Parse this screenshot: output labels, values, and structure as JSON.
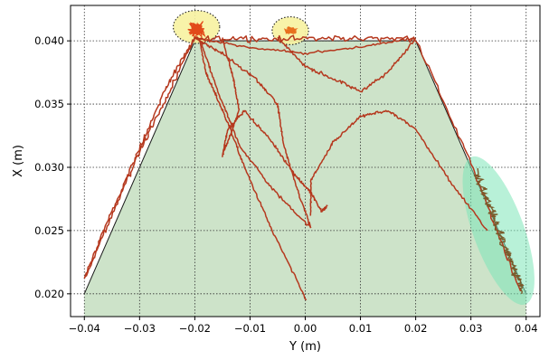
{
  "chart_data": {
    "type": "line",
    "title": "",
    "xlabel": "Y (m)",
    "ylabel": "X (m)",
    "xlim": [
      -0.0425,
      0.0425
    ],
    "ylim": [
      0.0182,
      0.0428
    ],
    "grid": true,
    "grid_style": "dotted",
    "x_ticks": [
      -0.04,
      -0.03,
      -0.02,
      -0.01,
      0.0,
      0.01,
      0.02,
      0.03,
      0.04
    ],
    "x_tick_labels": [
      "−0.04",
      "−0.03",
      "−0.02",
      "−0.01",
      "0.00",
      "0.01",
      "0.02",
      "0.03",
      "0.04"
    ],
    "y_ticks": [
      0.02,
      0.025,
      0.03,
      0.035,
      0.04
    ],
    "y_tick_labels": [
      "0.020",
      "0.025",
      "0.030",
      "0.035",
      "0.040"
    ],
    "colors": {
      "region_fill": "#cde3c9",
      "boundary": "#1a1a1a",
      "trajectory": "#b5381e",
      "hotspot": "#e24a1a",
      "wall_cluster": "#7a5a2a",
      "highlight_yellow": "#f7f2a0",
      "highlight_green": "#7ee6b8"
    },
    "region": {
      "boundary_polygon": [
        {
          "x": -0.04,
          "y": 0.02
        },
        {
          "x": -0.02,
          "y": 0.04
        },
        {
          "x": 0.02,
          "y": 0.04
        },
        {
          "x": 0.04,
          "y": 0.02
        }
      ]
    },
    "highlights": [
      {
        "shape": "ellipse",
        "cx": -0.0197,
        "cy": 0.0411,
        "rx": 0.0042,
        "ry": 0.0013,
        "fill": "#f7f2a0",
        "border": "dotted"
      },
      {
        "shape": "ellipse",
        "cx": -0.0027,
        "cy": 0.0408,
        "rx": 0.0033,
        "ry": 0.0011,
        "fill": "#f7f2a0",
        "border": "dotted"
      },
      {
        "shape": "ellipse",
        "cx": 0.035,
        "cy": 0.025,
        "rx": 0.0046,
        "ry": 0.0062,
        "rotate_deg": -20,
        "fill": "#7ee6b8",
        "border": "none"
      }
    ],
    "series": [
      {
        "points": [
          [
            -0.04,
            0.0211
          ],
          [
            -0.035,
            0.0262
          ],
          [
            -0.03,
            0.0313
          ],
          [
            -0.025,
            0.0356
          ],
          [
            -0.02,
            0.0402
          ],
          [
            -0.01,
            0.0402
          ],
          [
            0.0,
            0.0402
          ],
          [
            0.01,
            0.0402
          ],
          [
            0.02,
            0.0402
          ],
          [
            0.03,
            0.0303
          ],
          [
            0.039,
            0.0202
          ]
        ],
        "noise": 0.00035
      },
      {
        "points": [
          [
            -0.0192,
            0.0402
          ],
          [
            -0.018,
            0.0375
          ],
          [
            -0.016,
            0.0355
          ],
          [
            -0.014,
            0.0335
          ],
          [
            -0.011,
            0.03
          ],
          [
            -0.006,
            0.025
          ],
          [
            0.0002,
            0.0195
          ]
        ],
        "noise": 0.0002
      },
      {
        "points": [
          [
            -0.019,
            0.04
          ],
          [
            -0.016,
            0.0362
          ],
          [
            -0.012,
            0.0318
          ],
          [
            -0.006,
            0.0283
          ],
          [
            0.001,
            0.0252
          ]
        ],
        "noise": 0.0002
      },
      {
        "points": [
          [
            -0.015,
            0.0402
          ],
          [
            -0.013,
            0.037
          ],
          [
            -0.012,
            0.0345
          ],
          [
            -0.014,
            0.032
          ],
          [
            -0.015,
            0.031
          ],
          [
            -0.014,
            0.033
          ],
          [
            -0.011,
            0.0345
          ],
          [
            -0.006,
            0.032
          ],
          [
            -0.002,
            0.0295
          ],
          [
            0.001,
            0.028
          ],
          [
            0.003,
            0.0265
          ],
          [
            0.004,
            0.027
          ]
        ],
        "noise": 0.0002
      },
      {
        "points": [
          [
            -0.02,
            0.0402
          ],
          [
            -0.015,
            0.039
          ],
          [
            -0.009,
            0.037
          ],
          [
            -0.005,
            0.035
          ],
          [
            -0.004,
            0.032
          ],
          [
            -0.002,
            0.029
          ],
          [
            0.001,
            0.0252
          ]
        ],
        "noise": 0.0002
      },
      {
        "points": [
          [
            -0.005,
            0.0402
          ],
          [
            0.0,
            0.038
          ],
          [
            0.005,
            0.037
          ],
          [
            0.01,
            0.036
          ],
          [
            0.015,
            0.0375
          ],
          [
            0.02,
            0.0402
          ]
        ],
        "noise": 0.0002
      },
      {
        "points": [
          [
            0.001,
            0.0263
          ],
          [
            0.001,
            0.029
          ],
          [
            0.005,
            0.032
          ],
          [
            0.01,
            0.034
          ],
          [
            0.015,
            0.0345
          ],
          [
            0.02,
            0.033
          ],
          [
            0.026,
            0.029
          ],
          [
            0.033,
            0.025
          ]
        ],
        "noise": 0.0002
      },
      {
        "points": [
          [
            -0.02,
            0.0402
          ],
          [
            -0.01,
            0.0395
          ],
          [
            0.0,
            0.039
          ],
          [
            0.01,
            0.0395
          ],
          [
            0.02,
            0.0402
          ]
        ],
        "noise": 0.00015
      },
      {
        "points": [
          [
            -0.02,
            0.0402
          ],
          [
            -0.025,
            0.0365
          ],
          [
            -0.03,
            0.0315
          ],
          [
            -0.035,
            0.0265
          ],
          [
            -0.04,
            0.0212
          ]
        ],
        "noise": 0.0003
      }
    ],
    "hotspots": [
      {
        "x": -0.0197,
        "y": 0.0409,
        "spread_x": 0.0019,
        "spread_y": 0.0008,
        "count": 120,
        "color": "#e24a1a"
      },
      {
        "x": -0.0025,
        "y": 0.0408,
        "spread_x": 0.0016,
        "spread_y": 0.0005,
        "count": 60,
        "color": "#e8701e"
      }
    ],
    "wall_cluster": {
      "start": {
        "x": 0.031,
        "y": 0.0295
      },
      "end": {
        "x": 0.0395,
        "y": 0.0202
      },
      "width": 0.0018,
      "count": 160,
      "color": "#7a5a2a"
    }
  }
}
